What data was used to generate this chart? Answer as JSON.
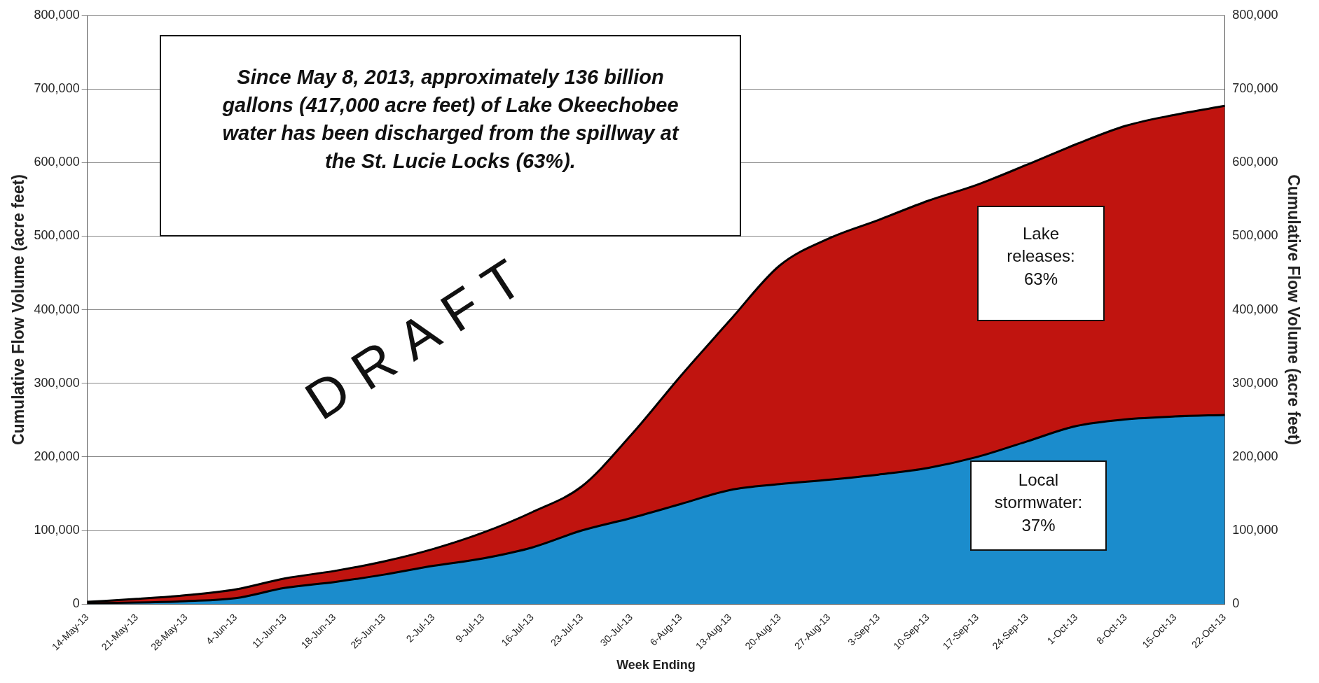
{
  "chart_data": {
    "type": "area",
    "stacked": true,
    "xlabel": "Week Ending",
    "ylabel": "Cumulative Flow Volume (acre feet)",
    "y2label": "Cumulative Flow Volume (acre feet)",
    "categories": [
      "14-May-13",
      "21-May-13",
      "28-May-13",
      "4-Jun-13",
      "11-Jun-13",
      "18-Jun-13",
      "25-Jun-13",
      "2-Jul-13",
      "9-Jul-13",
      "16-Jul-13",
      "23-Jul-13",
      "30-Jul-13",
      "6-Aug-13",
      "13-Aug-13",
      "20-Aug-13",
      "27-Aug-13",
      "3-Sep-13",
      "10-Sep-13",
      "17-Sep-13",
      "24-Sep-13",
      "1-Oct-13",
      "8-Oct-13",
      "15-Oct-13",
      "22-Oct-13"
    ],
    "series": [
      {
        "color": "#1b8ccc",
        "values": [
          1000,
          2000,
          4000,
          8000,
          22000,
          30000,
          40000,
          52000,
          62000,
          77000,
          100000,
          117000,
          136000,
          155000,
          163000,
          169000,
          176000,
          185000,
          200000,
          221000,
          242000,
          251000,
          255000,
          257000
        ]
      },
      {
        "color": "#c0140f",
        "values": [
          2000,
          5000,
          8000,
          12000,
          13000,
          15000,
          18000,
          23000,
          35000,
          48000,
          60000,
          113000,
          174000,
          231000,
          297000,
          328000,
          346000,
          363000,
          370000,
          376000,
          383000,
          399000,
          410000,
          420000
        ]
      }
    ],
    "ylim": [
      0,
      800000
    ],
    "yticks": [
      0,
      {
        "value": 100000,
        "label": "100,000"
      },
      {
        "value": 200000,
        "label": "200,000"
      },
      {
        "value": 300000,
        "label": "300,000"
      },
      {
        "value": 400000,
        "label": "400,000"
      },
      {
        "value": 500000,
        "label": "500,000"
      },
      {
        "value": 600000,
        "label": "600,000"
      },
      {
        "value": 700000,
        "label": "700,000"
      },
      {
        "value": 800000,
        "label": "800,000"
      }
    ],
    "y2lim": [
      0,
      800000
    ],
    "y2ticks": [
      0,
      {
        "value": 100000,
        "label": "100,000"
      },
      {
        "value": 200000,
        "label": "200,000"
      },
      {
        "value": 300000,
        "label": "300,000"
      },
      {
        "value": 400000,
        "label": "400,000"
      },
      {
        "value": 500000,
        "label": "500,000"
      },
      {
        "value": 600000,
        "label": "600,000"
      },
      {
        "value": 700000,
        "label": "700,000"
      },
      {
        "value": 800000,
        "label": "800,000"
      }
    ],
    "grid": "y",
    "legend": false,
    "annotations": [
      "Since May 8, 2013, approximately 136 billion gallons (417,000 acre feet) of Lake Okeechobee water has been discharged from the spillway at the St. Lucie Locks (63%).",
      "DRAFT",
      "Lake releases: 63%",
      "Local stormwater: 37%"
    ]
  }
}
